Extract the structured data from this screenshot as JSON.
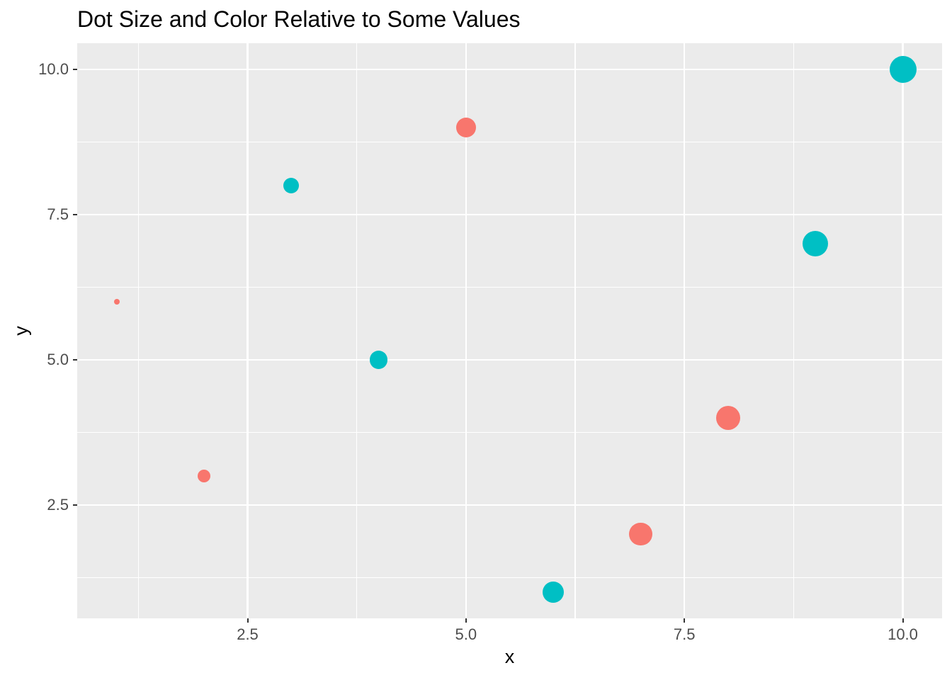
{
  "chart_data": {
    "type": "scatter",
    "title": "Dot Size and Color Relative to Some Values",
    "xlabel": "x",
    "ylabel": "y",
    "xlim": [
      0.55,
      10.45
    ],
    "ylim": [
      0.55,
      10.45
    ],
    "grid": true,
    "legend_position": "none",
    "x_major_ticks": [
      2.5,
      5.0,
      7.5,
      10.0
    ],
    "x_tick_labels": [
      "2.5",
      "5.0",
      "7.5",
      "10.0"
    ],
    "y_major_ticks": [
      2.5,
      5.0,
      7.5,
      10.0
    ],
    "y_tick_labels": [
      "2.5",
      "5.0",
      "7.5",
      "10.0"
    ],
    "x_minor_ticks": [
      1.25,
      3.75,
      6.25,
      8.75
    ],
    "y_minor_ticks": [
      1.25,
      3.75,
      6.25,
      8.75
    ],
    "points": [
      {
        "x": 1,
        "y": 6,
        "size_value": 1,
        "radius_px": 4.0,
        "color": "#F8766D"
      },
      {
        "x": 2,
        "y": 3,
        "size_value": 2,
        "radius_px": 9.0,
        "color": "#F8766D"
      },
      {
        "x": 3,
        "y": 8,
        "size_value": 3,
        "radius_px": 11.1,
        "color": "#00BFC4"
      },
      {
        "x": 4,
        "y": 5,
        "size_value": 4,
        "radius_px": 12.7,
        "color": "#00BFC4"
      },
      {
        "x": 5,
        "y": 9,
        "size_value": 5,
        "radius_px": 14.1,
        "color": "#F8766D"
      },
      {
        "x": 6,
        "y": 1,
        "size_value": 6,
        "radius_px": 15.2,
        "color": "#00BFC4"
      },
      {
        "x": 7,
        "y": 2,
        "size_value": 7,
        "radius_px": 16.2,
        "color": "#F8766D"
      },
      {
        "x": 8,
        "y": 4,
        "size_value": 8,
        "radius_px": 17.2,
        "color": "#F8766D"
      },
      {
        "x": 9,
        "y": 7,
        "size_value": 9,
        "radius_px": 18.1,
        "color": "#00BFC4"
      },
      {
        "x": 10,
        "y": 10,
        "size_value": 10,
        "radius_px": 19.0,
        "color": "#00BFC4"
      }
    ],
    "colors": {
      "salmon": "#F8766D",
      "teal": "#00BFC4",
      "panel_background": "#EBEBEB",
      "gridline": "#FFFFFF",
      "tick_label": "#4D4D4D",
      "tick_mark": "#333333",
      "title": "#000000"
    }
  }
}
